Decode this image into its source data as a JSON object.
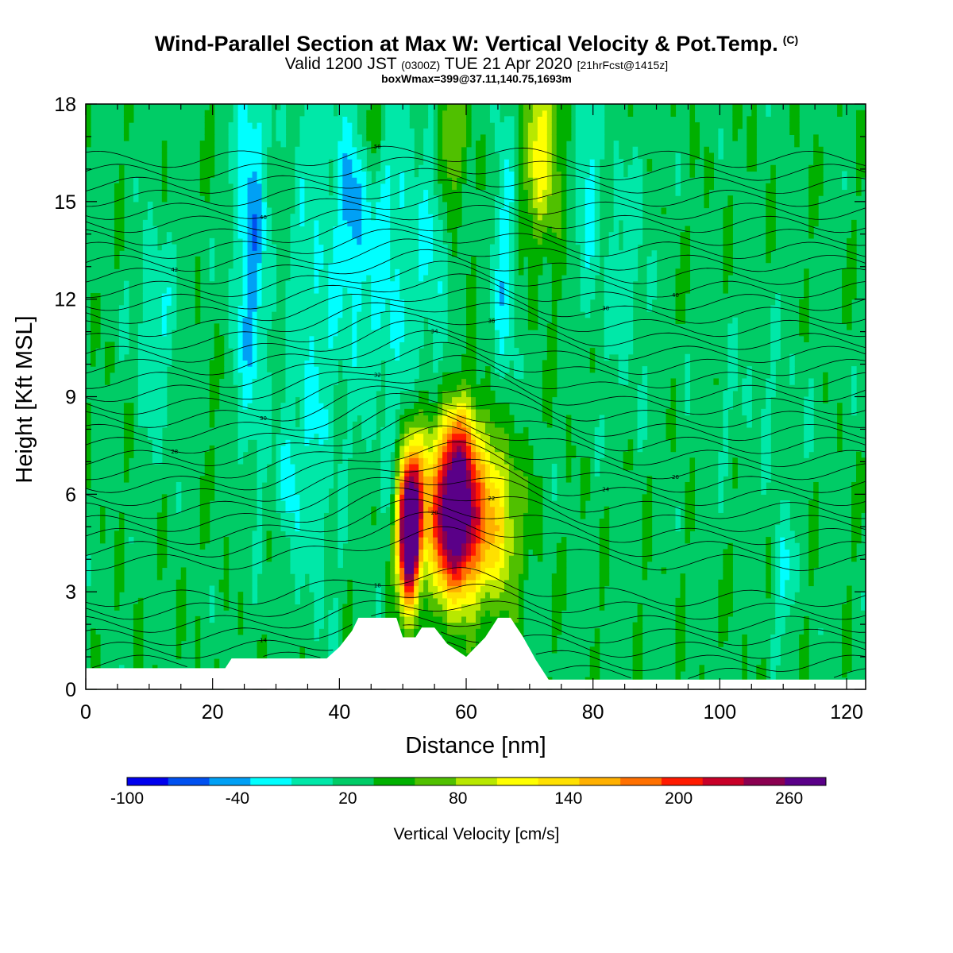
{
  "title": {
    "main": "Wind-Parallel Section at Max W: Vertical Velocity & Pot.Temp.",
    "copyright": "(C)",
    "valid_prefix": "Valid 1200 JST",
    "valid_utc": "(0300Z)",
    "valid_date": "TUE 21 Apr 2020",
    "forecast_tag": "[21hrFcst@1415z]",
    "box_info": "boxWmax=399@37.11,140.75,1693m"
  },
  "chart_data": {
    "type": "heatmap",
    "xlabel": "Distance [nm]",
    "ylabel": "Height [Kft MSL]",
    "xlim": [
      0,
      123
    ],
    "ylim": [
      0,
      18
    ],
    "x_ticks": [
      0,
      20,
      40,
      60,
      80,
      100,
      120
    ],
    "y_ticks": [
      0,
      3,
      6,
      9,
      12,
      15,
      18
    ],
    "colorbar": {
      "title": "Vertical Velocity [cm/s]",
      "min": -100,
      "max": 280,
      "step": 20,
      "tick_labels": [
        "-100",
        "-40",
        "20",
        "80",
        "140",
        "200",
        "260"
      ],
      "colors": [
        "#0000ee",
        "#0050f0",
        "#00a0f5",
        "#00ffff",
        "#00e8a8",
        "#00cc66",
        "#00b000",
        "#50c000",
        "#b8e800",
        "#ffff00",
        "#ffe000",
        "#ffb000",
        "#ff7000",
        "#ff1a00",
        "#c80028",
        "#8a0050",
        "#5a0088"
      ]
    },
    "theta_contour_labels": [
      10,
      14,
      18,
      20,
      22,
      24,
      26,
      28,
      30,
      32,
      34,
      36,
      38,
      40,
      42,
      46,
      50
    ],
    "updraft_max_cm_s": 399,
    "terrain_kft": [
      [
        0,
        0.65
      ],
      [
        22,
        0.65
      ],
      [
        23,
        0.95
      ],
      [
        38,
        0.95
      ],
      [
        40,
        1.3
      ],
      [
        42,
        1.8
      ],
      [
        43,
        2.2
      ],
      [
        49,
        2.2
      ],
      [
        50,
        1.6
      ],
      [
        52,
        1.6
      ],
      [
        53,
        1.9
      ],
      [
        55,
        1.9
      ],
      [
        57,
        1.4
      ],
      [
        60,
        1.0
      ],
      [
        63,
        1.6
      ],
      [
        65,
        2.2
      ],
      [
        67,
        2.2
      ],
      [
        69,
        1.6
      ],
      [
        71,
        0.9
      ],
      [
        73,
        0.3
      ],
      [
        123,
        0.3
      ]
    ]
  }
}
